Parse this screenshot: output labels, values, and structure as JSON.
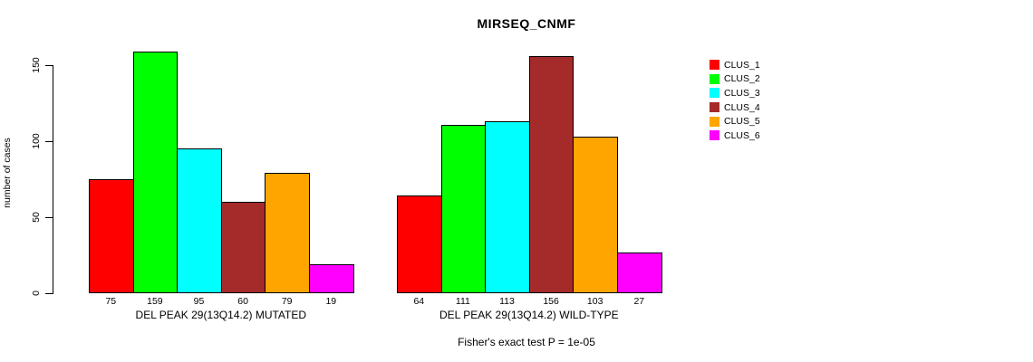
{
  "chart_data": {
    "type": "bar",
    "title": "MIRSEQ_CNMF",
    "ylabel": "number of cases",
    "annotation": "Fisher's exact test P = 1e-05",
    "yticks": [
      0,
      50,
      100,
      150
    ],
    "ylim": [
      0,
      165
    ],
    "grid": false,
    "legend_position": "right",
    "categories": [
      "DEL PEAK 29(13Q14.2) MUTATED",
      "DEL PEAK 29(13Q14.2) WILD-TYPE"
    ],
    "series": [
      {
        "name": "CLUS_1",
        "color": "#ff0000",
        "values": [
          75,
          64
        ]
      },
      {
        "name": "CLUS_2",
        "color": "#00ff00",
        "values": [
          159,
          111
        ]
      },
      {
        "name": "CLUS_3",
        "color": "#00ffff",
        "values": [
          95,
          113
        ]
      },
      {
        "name": "CLUS_4",
        "color": "#a52a2a",
        "values": [
          60,
          156
        ]
      },
      {
        "name": "CLUS_5",
        "color": "#ffa500",
        "values": [
          79,
          103
        ]
      },
      {
        "name": "CLUS_6",
        "color": "#ff00ff",
        "values": [
          19,
          27
        ]
      }
    ],
    "bar_value_labels_shown": true,
    "bar_border_color": "#000000",
    "background_color": "#ffffff",
    "text_color": "#000000"
  }
}
